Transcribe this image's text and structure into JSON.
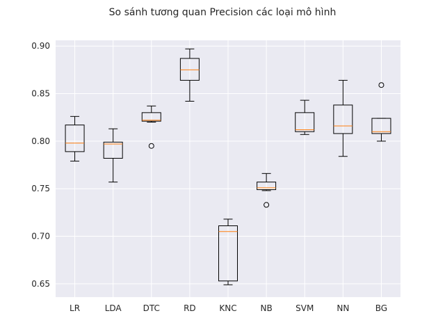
{
  "chart_data": {
    "type": "boxplot",
    "title": "So sánh tương quan Precision các loại mô hình",
    "xlabel": "",
    "ylabel": "",
    "ylim": [
      0.636,
      0.906
    ],
    "yticks": [
      "0.65",
      "0.70",
      "0.75",
      "0.80",
      "0.85",
      "0.90"
    ],
    "grid": true,
    "categories": [
      "LR",
      "LDA",
      "DTC",
      "RD",
      "KNC",
      "NB",
      "SVM",
      "NN",
      "BG"
    ],
    "boxes": [
      {
        "label": "LR",
        "whislo": 0.779,
        "q1": 0.789,
        "med": 0.798,
        "q3": 0.817,
        "whishi": 0.826,
        "fliers": []
      },
      {
        "label": "LDA",
        "whislo": 0.757,
        "q1": 0.782,
        "med": 0.797,
        "q3": 0.799,
        "whishi": 0.813,
        "fliers": []
      },
      {
        "label": "DTC",
        "whislo": 0.82,
        "q1": 0.821,
        "med": 0.822,
        "q3": 0.83,
        "whishi": 0.837,
        "fliers": [
          0.795
        ]
      },
      {
        "label": "RD",
        "whislo": 0.842,
        "q1": 0.864,
        "med": 0.875,
        "q3": 0.887,
        "whishi": 0.897,
        "fliers": []
      },
      {
        "label": "KNC",
        "whislo": 0.649,
        "q1": 0.653,
        "med": 0.705,
        "q3": 0.711,
        "whishi": 0.718,
        "fliers": []
      },
      {
        "label": "NB",
        "whislo": 0.748,
        "q1": 0.749,
        "med": 0.751,
        "q3": 0.757,
        "whishi": 0.766,
        "fliers": [
          0.733
        ]
      },
      {
        "label": "SVM",
        "whislo": 0.807,
        "q1": 0.81,
        "med": 0.812,
        "q3": 0.83,
        "whishi": 0.843,
        "fliers": []
      },
      {
        "label": "NN",
        "whislo": 0.784,
        "q1": 0.808,
        "med": 0.816,
        "q3": 0.838,
        "whishi": 0.864,
        "fliers": []
      },
      {
        "label": "BG",
        "whislo": 0.8,
        "q1": 0.808,
        "med": 0.81,
        "q3": 0.824,
        "whishi": 0.824,
        "fliers": [
          0.859
        ]
      }
    ],
    "colors": {
      "background": "#eaeaf2",
      "grid": "#ffffff",
      "box": "#000000",
      "median": "#ff7f0e"
    }
  }
}
